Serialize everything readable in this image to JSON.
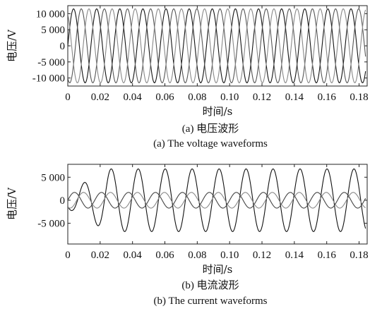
{
  "chart_data": [
    {
      "type": "line",
      "panel": "a",
      "xlabel": "时间/s",
      "ylabel": "电压/V",
      "xlim": [
        0,
        0.185
      ],
      "ylim": [
        -12500,
        12500
      ],
      "x_ticks": [
        "0",
        "0.02",
        "0.04",
        "0.06",
        "0.08",
        "0.10",
        "0.12",
        "0.14",
        "0.16",
        "0.18"
      ],
      "y_ticks": [
        "10 000",
        "5 000",
        "0",
        "-5 000",
        "-10 000"
      ],
      "caption_cn": "(a) 电压波形",
      "caption_en": "(a) The voltage waveforms",
      "series": [
        {
          "amplitude": 11500,
          "frequency_hz": 70,
          "phase_deg": 0,
          "color": "#111111",
          "x_end": 0.184
        },
        {
          "amplitude": 11500,
          "frequency_hz": 70,
          "phase_deg": -120,
          "color": "#555555",
          "x_end": 0.184
        },
        {
          "amplitude": 11500,
          "frequency_hz": 70,
          "phase_deg": 120,
          "color": "#888888",
          "x_end": 0.184
        }
      ]
    },
    {
      "type": "line",
      "panel": "b",
      "xlabel": "时间/s",
      "ylabel": "电压/V",
      "xlim": [
        0,
        0.185
      ],
      "ylim": [
        -9500,
        7800
      ],
      "x_ticks": [
        "0",
        "0.02",
        "0.04",
        "0.06",
        "0.08",
        "0.10",
        "0.12",
        "0.14",
        "0.16",
        "0.18"
      ],
      "y_ticks": [
        "5 000",
        "0",
        "-5 000"
      ],
      "caption_cn": "(b) 电流波形",
      "caption_en": "(b) The current waveforms",
      "series": [
        {
          "amplitude": 6800,
          "frequency_hz": 60,
          "phase_deg": -130,
          "color": "#111111",
          "transient_start_amp": 1800,
          "transient_end_t": 0.025,
          "x_end": 0.184
        },
        {
          "amplitude": 1700,
          "frequency_hz": 60,
          "phase_deg": 0,
          "color": "#444444",
          "x_end": 0.184
        },
        {
          "amplitude": 1700,
          "frequency_hz": 60,
          "phase_deg": -120,
          "color": "#888888",
          "x_end": 0.184
        }
      ]
    }
  ]
}
